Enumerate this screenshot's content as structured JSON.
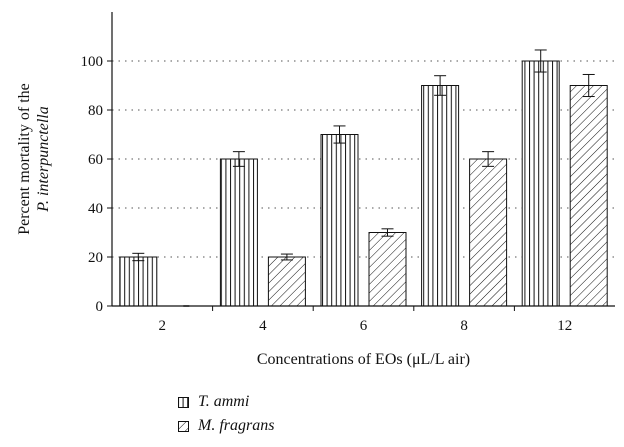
{
  "chart_data": {
    "type": "bar",
    "categories": [
      "2",
      "4",
      "6",
      "8",
      "12"
    ],
    "series": [
      {
        "name": "T. ammi",
        "values": [
          20,
          60,
          70,
          90,
          100
        ],
        "errors": [
          1.5,
          3,
          3.5,
          4,
          4.5
        ],
        "pattern": "vertical-lines"
      },
      {
        "name": "M. fragrans",
        "values": [
          0,
          20,
          30,
          60,
          90
        ],
        "errors": [
          0,
          1.2,
          1.5,
          3,
          4.5
        ],
        "pattern": "diagonal-lines"
      }
    ],
    "xlabel": "Concentrations of EOs (μL/L air)",
    "ylabel_line1": "Percent mortality of the",
    "ylabel_line2": "P. interpunctella",
    "ylim": [
      0,
      120
    ],
    "yticks": [
      0,
      20,
      40,
      60,
      80,
      100
    ],
    "grid": "dotted-horizontal",
    "legend_position": "bottom-left"
  }
}
